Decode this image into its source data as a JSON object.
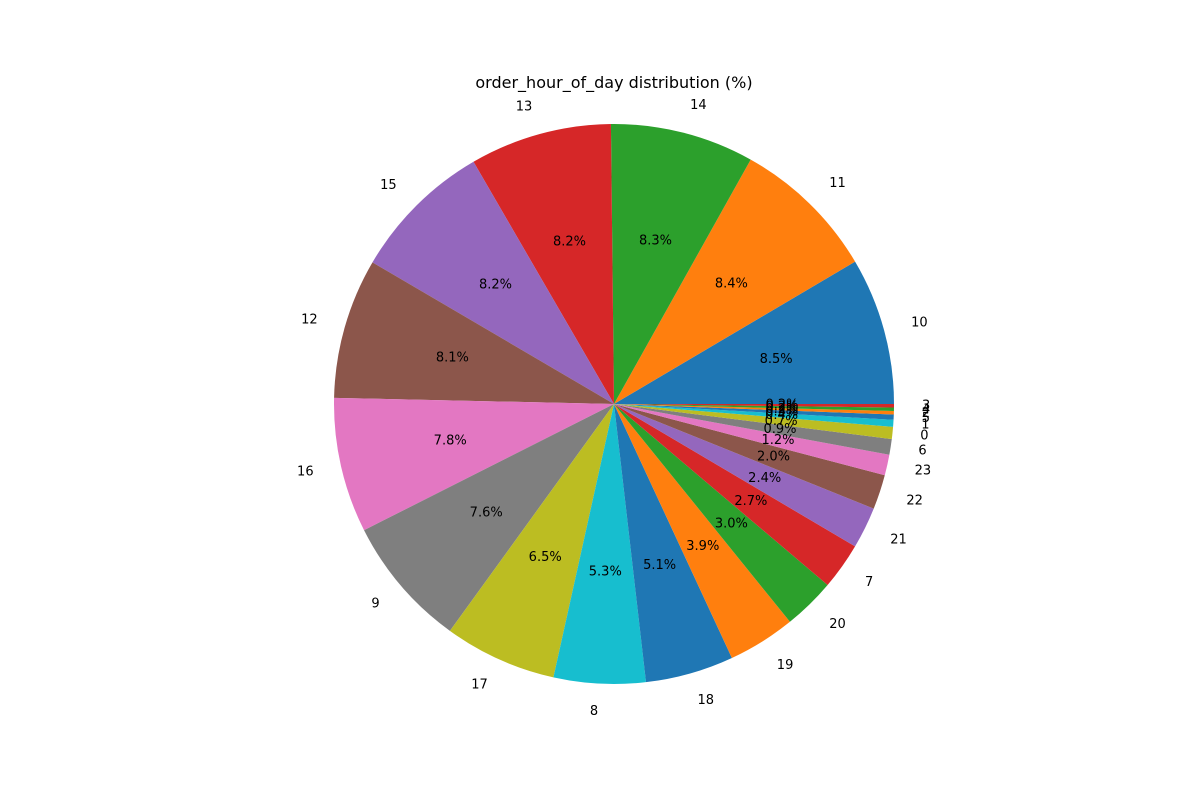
{
  "chart_data": {
    "type": "pie",
    "title": "order_hour_of_day distribution (%)",
    "start_angle_deg": 0,
    "direction": "counterclockwise",
    "slices": [
      {
        "label": "10",
        "value": 8.5,
        "pct_label": "8.5%",
        "color": "#1f77b4"
      },
      {
        "label": "11",
        "value": 8.4,
        "pct_label": "8.4%",
        "color": "#ff7f0e"
      },
      {
        "label": "14",
        "value": 8.3,
        "pct_label": "8.3%",
        "color": "#2ca02c"
      },
      {
        "label": "13",
        "value": 8.2,
        "pct_label": "8.2%",
        "color": "#d62728"
      },
      {
        "label": "15",
        "value": 8.2,
        "pct_label": "8.2%",
        "color": "#9467bd"
      },
      {
        "label": "12",
        "value": 8.1,
        "pct_label": "8.1%",
        "color": "#8c564b"
      },
      {
        "label": "16",
        "value": 7.8,
        "pct_label": "7.8%",
        "color": "#e377c2"
      },
      {
        "label": "9",
        "value": 7.6,
        "pct_label": "7.6%",
        "color": "#7f7f7f"
      },
      {
        "label": "17",
        "value": 6.5,
        "pct_label": "6.5%",
        "color": "#bcbd22"
      },
      {
        "label": "8",
        "value": 5.3,
        "pct_label": "5.3%",
        "color": "#17becf"
      },
      {
        "label": "18",
        "value": 5.1,
        "pct_label": "5.1%",
        "color": "#1f77b4"
      },
      {
        "label": "19",
        "value": 3.9,
        "pct_label": "3.9%",
        "color": "#ff7f0e"
      },
      {
        "label": "20",
        "value": 3.0,
        "pct_label": "3.0%",
        "color": "#2ca02c"
      },
      {
        "label": "7",
        "value": 2.7,
        "pct_label": "2.7%",
        "color": "#d62728"
      },
      {
        "label": "21",
        "value": 2.4,
        "pct_label": "2.4%",
        "color": "#9467bd"
      },
      {
        "label": "22",
        "value": 2.0,
        "pct_label": "2.0%",
        "color": "#8c564b"
      },
      {
        "label": "23",
        "value": 1.2,
        "pct_label": "1.2%",
        "color": "#e377c2"
      },
      {
        "label": "6",
        "value": 0.9,
        "pct_label": "0.9%",
        "color": "#7f7f7f"
      },
      {
        "label": "0",
        "value": 0.7,
        "pct_label": "0.7%",
        "color": "#bcbd22"
      },
      {
        "label": "1",
        "value": 0.4,
        "pct_label": "0.4%",
        "color": "#17becf"
      },
      {
        "label": "5",
        "value": 0.3,
        "pct_label": "0.3%",
        "color": "#1f77b4"
      },
      {
        "label": "2",
        "value": 0.2,
        "pct_label": "0.2%",
        "color": "#ff7f0e"
      },
      {
        "label": "4",
        "value": 0.2,
        "pct_label": "0.2%",
        "color": "#2ca02c"
      },
      {
        "label": "3",
        "value": 0.2,
        "pct_label": "0.2%",
        "color": "#d62728"
      }
    ]
  }
}
